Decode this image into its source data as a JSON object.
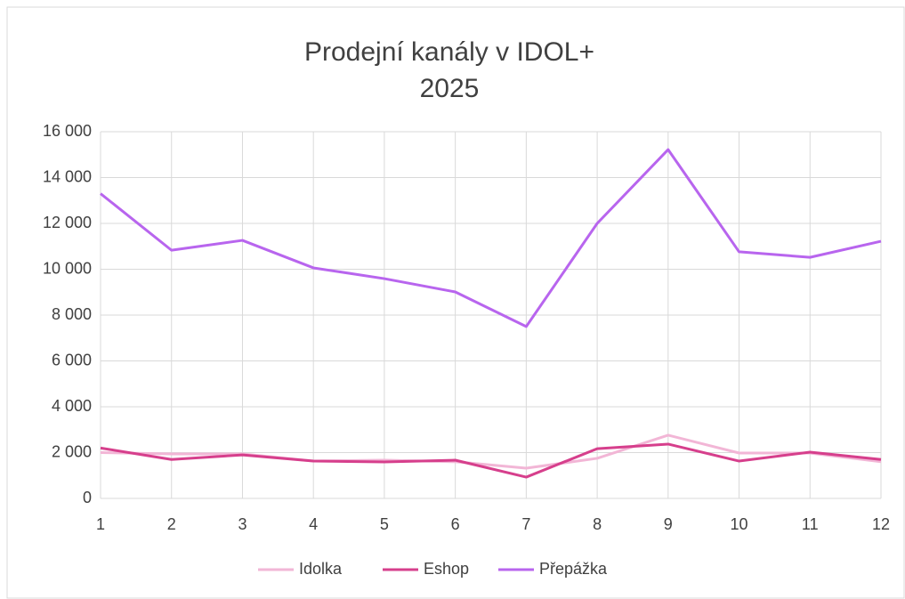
{
  "chart_data": {
    "type": "line",
    "title": "Prodejní kanály v IDOL+",
    "subtitle": "2025",
    "categories": [
      "1",
      "2",
      "3",
      "4",
      "5",
      "6",
      "7",
      "8",
      "9",
      "10",
      "11",
      "12"
    ],
    "series": [
      {
        "name": "Idolka",
        "color": "#f2b6d6",
        "values": [
          2000,
          1940,
          1940,
          1630,
          1670,
          1600,
          1320,
          1750,
          2760,
          1980,
          1980,
          1600
        ]
      },
      {
        "name": "Eshop",
        "color": "#d63f8c",
        "values": [
          2200,
          1700,
          1900,
          1630,
          1590,
          1670,
          930,
          2170,
          2370,
          1630,
          2020,
          1700
        ]
      },
      {
        "name": "Přepážka",
        "color": "#b865ee",
        "values": [
          13300,
          10830,
          11260,
          10060,
          9590,
          9010,
          7500,
          12000,
          15220,
          10760,
          10520,
          11220
        ]
      }
    ],
    "ylim": [
      0,
      16000
    ],
    "yticks": [
      0,
      {
        "value": 2000,
        "label": "2 000"
      },
      {
        "value": 4000,
        "label": "4 000"
      },
      {
        "value": 6000,
        "label": "6 000"
      },
      {
        "value": 8000,
        "label": "8 000"
      },
      {
        "value": 10000,
        "label": "10 000"
      },
      {
        "value": 12000,
        "label": "12 000"
      },
      {
        "value": 14000,
        "label": "14 000"
      },
      {
        "value": 16000,
        "label": "16 000"
      }
    ],
    "grid": true,
    "legend": "bottom"
  }
}
